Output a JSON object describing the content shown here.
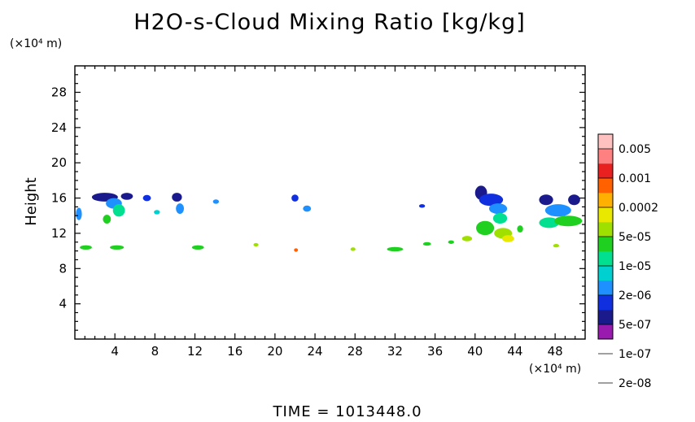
{
  "chart_data": {
    "type": "heatmap",
    "title": "H2O-s-Cloud Mixing Ratio [kg/kg]",
    "ylabel": "Height",
    "y_unit": "(×10⁴ m)",
    "x_unit": "(×10⁴ m)",
    "footer": "TIME  =  1013448.0",
    "xlim": [
      0,
      51
    ],
    "ylim": [
      0,
      31
    ],
    "x_ticks": [
      4,
      8,
      12,
      16,
      20,
      24,
      28,
      32,
      36,
      40,
      44,
      48
    ],
    "x_tick_labels": [
      "4",
      "8",
      "12",
      "16",
      "20",
      "24",
      "28",
      "32",
      "36",
      "40",
      "44",
      "48"
    ],
    "y_ticks": [
      4,
      8,
      12,
      16,
      20,
      24,
      28
    ],
    "y_tick_labels": [
      "4",
      "8",
      "12",
      "16",
      "20",
      "24",
      "28"
    ],
    "colorbar": {
      "labels": [
        "0.005",
        "0.001",
        "0.0002",
        "5e-05",
        "1e-05",
        "2e-06",
        "5e-07",
        "1e-07",
        "2e-08"
      ],
      "colors": [
        "#9a1ab0",
        "#1a1a8c",
        "#1030e0",
        "#1e90ff",
        "#00d0d0",
        "#00e090",
        "#20d020",
        "#a0e000",
        "#e8e800",
        "#ffb000",
        "#ff6000",
        "#e82020",
        "#ff8080",
        "#ffc0c0"
      ]
    },
    "cloud_blobs": [
      {
        "x": 0.4,
        "y": 14.2,
        "rx": 0.3,
        "ry": 0.7,
        "level": 3
      },
      {
        "x": 1.1,
        "y": 10.4,
        "rx": 0.6,
        "ry": 0.25,
        "level": 6
      },
      {
        "x": 4.2,
        "y": 10.4,
        "rx": 0.7,
        "ry": 0.25,
        "level": 6
      },
      {
        "x": 3.0,
        "y": 16.1,
        "rx": 1.3,
        "ry": 0.5,
        "level": 1
      },
      {
        "x": 3.9,
        "y": 15.4,
        "rx": 0.8,
        "ry": 0.6,
        "level": 3
      },
      {
        "x": 4.4,
        "y": 14.6,
        "rx": 0.6,
        "ry": 0.7,
        "level": 5
      },
      {
        "x": 3.2,
        "y": 13.6,
        "rx": 0.4,
        "ry": 0.5,
        "level": 6
      },
      {
        "x": 5.2,
        "y": 16.2,
        "rx": 0.6,
        "ry": 0.4,
        "level": 1
      },
      {
        "x": 7.2,
        "y": 16.0,
        "rx": 0.4,
        "ry": 0.35,
        "level": 2
      },
      {
        "x": 8.2,
        "y": 14.4,
        "rx": 0.3,
        "ry": 0.25,
        "level": 4
      },
      {
        "x": 10.2,
        "y": 16.1,
        "rx": 0.5,
        "ry": 0.5,
        "level": 1
      },
      {
        "x": 10.5,
        "y": 14.8,
        "rx": 0.4,
        "ry": 0.6,
        "level": 3
      },
      {
        "x": 12.3,
        "y": 10.4,
        "rx": 0.6,
        "ry": 0.25,
        "level": 6
      },
      {
        "x": 14.1,
        "y": 15.6,
        "rx": 0.3,
        "ry": 0.25,
        "level": 3
      },
      {
        "x": 18.1,
        "y": 10.7,
        "rx": 0.25,
        "ry": 0.2,
        "level": 7
      },
      {
        "x": 22.0,
        "y": 16.0,
        "rx": 0.35,
        "ry": 0.4,
        "level": 2
      },
      {
        "x": 23.2,
        "y": 14.8,
        "rx": 0.4,
        "ry": 0.35,
        "level": 3
      },
      {
        "x": 22.1,
        "y": 10.1,
        "rx": 0.2,
        "ry": 0.2,
        "level": 10
      },
      {
        "x": 27.8,
        "y": 10.2,
        "rx": 0.25,
        "ry": 0.2,
        "level": 7
      },
      {
        "x": 32.0,
        "y": 10.2,
        "rx": 0.8,
        "ry": 0.25,
        "level": 6
      },
      {
        "x": 34.7,
        "y": 15.1,
        "rx": 0.3,
        "ry": 0.2,
        "level": 2
      },
      {
        "x": 35.2,
        "y": 10.8,
        "rx": 0.4,
        "ry": 0.2,
        "level": 6
      },
      {
        "x": 37.6,
        "y": 11.0,
        "rx": 0.3,
        "ry": 0.2,
        "level": 6
      },
      {
        "x": 39.2,
        "y": 11.4,
        "rx": 0.5,
        "ry": 0.3,
        "level": 7
      },
      {
        "x": 40.6,
        "y": 16.6,
        "rx": 0.6,
        "ry": 0.8,
        "level": 1
      },
      {
        "x": 41.6,
        "y": 15.8,
        "rx": 1.2,
        "ry": 0.7,
        "level": 2
      },
      {
        "x": 42.3,
        "y": 14.8,
        "rx": 0.9,
        "ry": 0.6,
        "level": 3
      },
      {
        "x": 42.5,
        "y": 13.7,
        "rx": 0.7,
        "ry": 0.6,
        "level": 5
      },
      {
        "x": 41.0,
        "y": 12.6,
        "rx": 0.9,
        "ry": 0.8,
        "level": 6
      },
      {
        "x": 42.8,
        "y": 12.0,
        "rx": 0.9,
        "ry": 0.6,
        "level": 7
      },
      {
        "x": 43.3,
        "y": 11.4,
        "rx": 0.6,
        "ry": 0.4,
        "level": 8
      },
      {
        "x": 44.5,
        "y": 12.5,
        "rx": 0.3,
        "ry": 0.4,
        "level": 6
      },
      {
        "x": 47.1,
        "y": 15.8,
        "rx": 0.7,
        "ry": 0.6,
        "level": 1
      },
      {
        "x": 49.9,
        "y": 15.8,
        "rx": 0.6,
        "ry": 0.6,
        "level": 1
      },
      {
        "x": 48.3,
        "y": 14.6,
        "rx": 1.3,
        "ry": 0.7,
        "level": 3
      },
      {
        "x": 47.4,
        "y": 13.2,
        "rx": 1.0,
        "ry": 0.6,
        "level": 5
      },
      {
        "x": 49.3,
        "y": 13.4,
        "rx": 1.4,
        "ry": 0.6,
        "level": 6
      },
      {
        "x": 48.1,
        "y": 10.6,
        "rx": 0.3,
        "ry": 0.2,
        "level": 7
      }
    ]
  }
}
